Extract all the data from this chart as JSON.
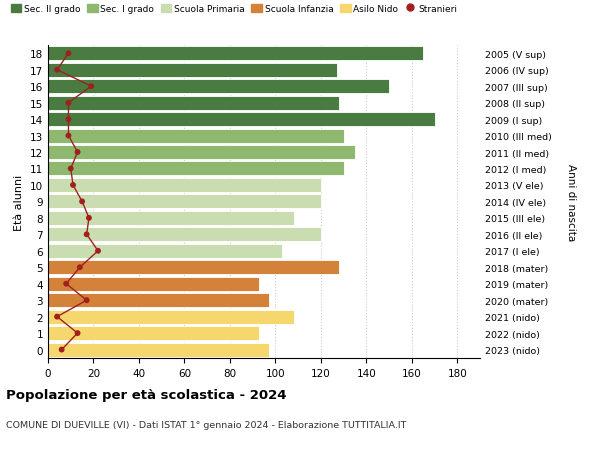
{
  "ages": [
    0,
    1,
    2,
    3,
    4,
    5,
    6,
    7,
    8,
    9,
    10,
    11,
    12,
    13,
    14,
    15,
    16,
    17,
    18
  ],
  "bar_values": [
    97,
    93,
    108,
    97,
    93,
    128,
    103,
    120,
    108,
    120,
    120,
    130,
    135,
    130,
    170,
    128,
    150,
    127,
    165
  ],
  "stranieri": [
    6,
    13,
    4,
    17,
    8,
    14,
    22,
    17,
    18,
    15,
    11,
    10,
    13,
    9,
    9,
    9,
    19,
    4,
    9
  ],
  "bar_colors": [
    "#f5d76e",
    "#f5d76e",
    "#f5d76e",
    "#d4813a",
    "#d4813a",
    "#d4813a",
    "#c9ddb0",
    "#c9ddb0",
    "#c9ddb0",
    "#c9ddb0",
    "#c9ddb0",
    "#8db86e",
    "#8db86e",
    "#8db86e",
    "#4a7c41",
    "#4a7c41",
    "#4a7c41",
    "#4a7c41",
    "#4a7c41"
  ],
  "right_labels": [
    "2023 (nido)",
    "2022 (nido)",
    "2021 (nido)",
    "2020 (mater)",
    "2019 (mater)",
    "2018 (mater)",
    "2017 (I ele)",
    "2016 (II ele)",
    "2015 (III ele)",
    "2014 (IV ele)",
    "2013 (V ele)",
    "2012 (I med)",
    "2011 (II med)",
    "2010 (III med)",
    "2009 (I sup)",
    "2008 (II sup)",
    "2007 (III sup)",
    "2006 (IV sup)",
    "2005 (V sup)"
  ],
  "legend_labels": [
    "Sec. II grado",
    "Sec. I grado",
    "Scuola Primaria",
    "Scuola Infanzia",
    "Asilo Nido",
    "Stranieri"
  ],
  "legend_colors": [
    "#4a7c41",
    "#8db86e",
    "#c9ddb0",
    "#d4813a",
    "#f5d76e",
    "#a02020"
  ],
  "ylabel_left": "Età alunni",
  "ylabel_right": "Anni di nascita",
  "title": "Popolazione per età scolastica - 2024",
  "subtitle": "COMUNE DI DUEVILLE (VI) - Dati ISTAT 1° gennaio 2024 - Elaborazione TUTTITALIA.IT",
  "xlim": [
    0,
    190
  ],
  "xticks": [
    0,
    20,
    40,
    60,
    80,
    100,
    120,
    140,
    160,
    180
  ],
  "stranieri_color": "#a02020",
  "bar_height": 0.85,
  "grid_color": "#cccccc"
}
